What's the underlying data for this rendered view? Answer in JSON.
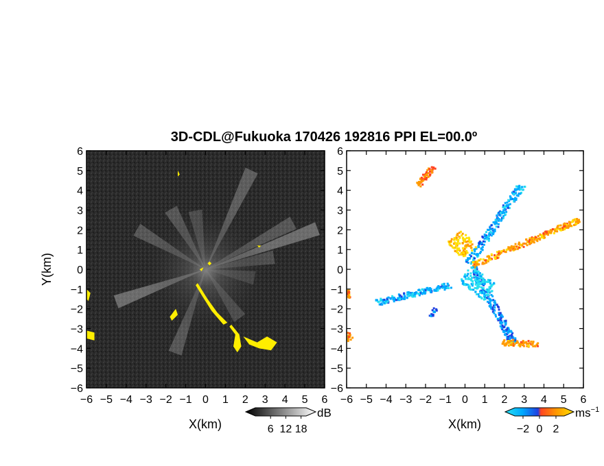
{
  "title": "3D-CDL@Fukuoka 170426 192816 PPI EL=00.0º",
  "chart_data": [
    {
      "type": "heatmap",
      "panel": "left",
      "quantity": "SNR",
      "xlabel": "X(km)",
      "ylabel": "Y(km)",
      "xlim": [
        -6,
        6
      ],
      "ylim": [
        -6,
        6
      ],
      "xticks": [
        -6,
        -5,
        -4,
        -3,
        -2,
        -1,
        0,
        1,
        2,
        3,
        4,
        5,
        6
      ],
      "yticks": [
        -6,
        -5,
        -4,
        -3,
        -2,
        -1,
        0,
        1,
        2,
        3,
        4,
        5,
        6
      ],
      "colorbar": {
        "unit": "dB",
        "ticks": [
          6,
          12,
          18
        ],
        "colormap": "grayscale"
      },
      "background_color": "#2b2b2b",
      "highlight_color": "#ffee00",
      "rays": [
        {
          "azimuth_deg": 25,
          "length_km": 5.5,
          "intensity": 0.35
        },
        {
          "azimuth_deg": 70,
          "length_km": 6.0,
          "intensity": 0.45
        },
        {
          "azimuth_deg": 62,
          "length_km": 5.0,
          "intensity": 0.3
        },
        {
          "azimuth_deg": 80,
          "length_km": 3.5,
          "intensity": 0.25
        },
        {
          "azimuth_deg": -10,
          "length_km": 3.0,
          "intensity": 0.25
        },
        {
          "azimuth_deg": 200,
          "length_km": 4.5,
          "intensity": 0.3
        },
        {
          "azimuth_deg": 250,
          "length_km": 4.8,
          "intensity": 0.45
        },
        {
          "azimuth_deg": 300,
          "length_km": 4.0,
          "intensity": 0.3
        },
        {
          "azimuth_deg": 330,
          "length_km": 3.5,
          "intensity": 0.3
        },
        {
          "azimuth_deg": 145,
          "length_km": 3.0,
          "intensity": 0.25
        },
        {
          "azimuth_deg": 100,
          "length_km": 2.5,
          "intensity": 0.2
        }
      ],
      "yellow_regions": [
        {
          "points": [
            [
              -0.4,
              -0.7
            ],
            [
              0.1,
              -1.5
            ],
            [
              0.6,
              -2.2
            ],
            [
              1.1,
              -2.7
            ],
            [
              0.9,
              -2.8
            ],
            [
              0.3,
              -2.1
            ],
            [
              -0.2,
              -1.3
            ],
            [
              -0.5,
              -0.8
            ]
          ]
        },
        {
          "points": [
            [
              1.3,
              -2.8
            ],
            [
              1.7,
              -3.3
            ],
            [
              1.8,
              -3.9
            ],
            [
              1.6,
              -4.2
            ],
            [
              1.4,
              -3.9
            ],
            [
              1.5,
              -3.3
            ],
            [
              1.2,
              -2.9
            ]
          ]
        },
        {
          "points": [
            [
              1.9,
              -3.4
            ],
            [
              2.6,
              -3.7
            ],
            [
              3.1,
              -3.4
            ],
            [
              3.6,
              -3.7
            ],
            [
              3.3,
              -4.1
            ],
            [
              2.7,
              -4.0
            ],
            [
              2.2,
              -3.8
            ]
          ]
        },
        {
          "points": [
            [
              -6.0,
              -3.1
            ],
            [
              -5.6,
              -3.2
            ],
            [
              -5.6,
              -3.6
            ],
            [
              -6.0,
              -3.5
            ]
          ]
        },
        {
          "points": [
            [
              -6.0,
              -1.0
            ],
            [
              -5.8,
              -1.2
            ],
            [
              -5.9,
              -1.6
            ],
            [
              -6.0,
              -1.5
            ]
          ]
        },
        {
          "points": [
            [
              -1.5,
              -2.0
            ],
            [
              -1.4,
              -2.3
            ],
            [
              -1.7,
              -2.6
            ],
            [
              -1.8,
              -2.4
            ]
          ]
        },
        {
          "points": [
            [
              -1.4,
              5.0
            ],
            [
              -1.3,
              4.8
            ],
            [
              -1.4,
              4.7
            ]
          ]
        },
        {
          "points": [
            [
              2.6,
              1.2
            ],
            [
              2.8,
              1.2
            ],
            [
              2.7,
              1.1
            ]
          ]
        },
        {
          "points": [
            [
              0.1,
              0.3
            ],
            [
              0.2,
              0.4
            ],
            [
              0.3,
              0.3
            ],
            [
              0.2,
              0.2
            ]
          ]
        },
        {
          "points": [
            [
              -0.3,
              0.0
            ],
            [
              -0.1,
              0.1
            ],
            [
              -0.2,
              -0.1
            ]
          ]
        }
      ]
    },
    {
      "type": "scatter",
      "panel": "right",
      "quantity": "Doppler velocity",
      "xlabel": "X(km)",
      "xlim": [
        -6,
        6
      ],
      "ylim": [
        -6,
        6
      ],
      "xticks": [
        -6,
        -5,
        -4,
        -3,
        -2,
        -1,
        0,
        1,
        2,
        3,
        4,
        5,
        6
      ],
      "yticks": [
        -6,
        -5,
        -4,
        -3,
        -2,
        -1,
        0,
        1,
        2,
        3,
        4,
        5,
        6
      ],
      "colorbar": {
        "unit": "ms",
        "unit_exponent": "−1",
        "ticks": [
          -2,
          0,
          2
        ]
      },
      "colormap": [
        "#29e0f0",
        "#00aaff",
        "#1f3fe0",
        "#ff4422",
        "#ff9a00",
        "#ffe000"
      ],
      "clusters": [
        {
          "from": [
            0.2,
            0.3
          ],
          "to": [
            2.9,
            4.3
          ],
          "velocity": -1.5,
          "width_km": 0.4
        },
        {
          "from": [
            0.4,
            0.2
          ],
          "to": [
            5.8,
            2.5
          ],
          "velocity": 1.6,
          "width_km": 0.3
        },
        {
          "from": [
            0.4,
            0.1
          ],
          "to": [
            2.5,
            -3.8
          ],
          "velocity": -1.2,
          "width_km": 0.4
        },
        {
          "from": [
            1.9,
            -3.7
          ],
          "to": [
            3.7,
            -3.8
          ],
          "velocity": 1.5,
          "width_km": 0.3
        },
        {
          "from": [
            -0.7,
            -0.8
          ],
          "to": [
            -4.5,
            -1.7
          ],
          "velocity": -1.6,
          "width_km": 0.3
        },
        {
          "from": [
            -0.5,
            1.7
          ],
          "to": [
            0.2,
            0.8
          ],
          "velocity": 2.2,
          "width_km": 1.0
        },
        {
          "from": [
            0.0,
            -0.2
          ],
          "to": [
            1.3,
            -1.2
          ],
          "velocity": -2.4,
          "width_km": 1.0
        },
        {
          "from": [
            -1.6,
            5.2
          ],
          "to": [
            -2.4,
            4.2
          ],
          "velocity": 1.0,
          "width_km": 0.3
        },
        {
          "from": [
            -6.0,
            -3.2
          ],
          "to": [
            -5.8,
            -3.6
          ],
          "velocity": 1.5,
          "width_km": 0.3
        },
        {
          "from": [
            -6.0,
            -1.0
          ],
          "to": [
            -5.9,
            -1.5
          ],
          "velocity": 1.5,
          "width_km": 0.2
        },
        {
          "from": [
            -1.5,
            -2.0
          ],
          "to": [
            -1.7,
            -2.4
          ],
          "velocity": -1.0,
          "width_km": 0.2
        }
      ]
    }
  ]
}
